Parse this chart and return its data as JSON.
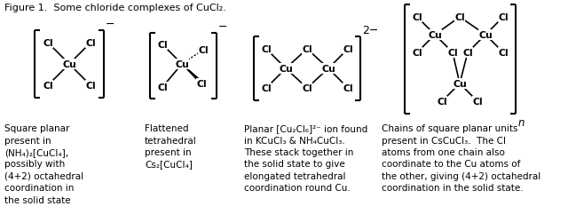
{
  "title": "Figure 1.  Some chloride complexes of CuCl₂.",
  "bg_color": "#ffffff",
  "text_color": "#000000",
  "caption1_lines": [
    "Square planar",
    "present in",
    "(NH₄)₂[CuCl₄],",
    "possibly with",
    "(4+2) octahedral",
    "coordination in",
    "the solid state"
  ],
  "caption2_lines": [
    "Flattened",
    "tetrahedral",
    "present in",
    "Cs₂[CuCl₄]"
  ],
  "caption3_lines": [
    "Planar [Cu₂Cl₆]²⁻ ion found",
    "in KCuCl₃ & NH₄CuCl₃.",
    "These stack together in",
    "the solid state to give",
    "elongated tetrahedral",
    "coordination round Cu."
  ],
  "caption4_lines": [
    "Chains of square planar units",
    "present in CsCuCl₃.  The Cl",
    "atoms from one chain also",
    "coordinate to the Cu atoms of",
    "the other, giving (4+2) octahedral",
    "coordination in the solid state."
  ]
}
